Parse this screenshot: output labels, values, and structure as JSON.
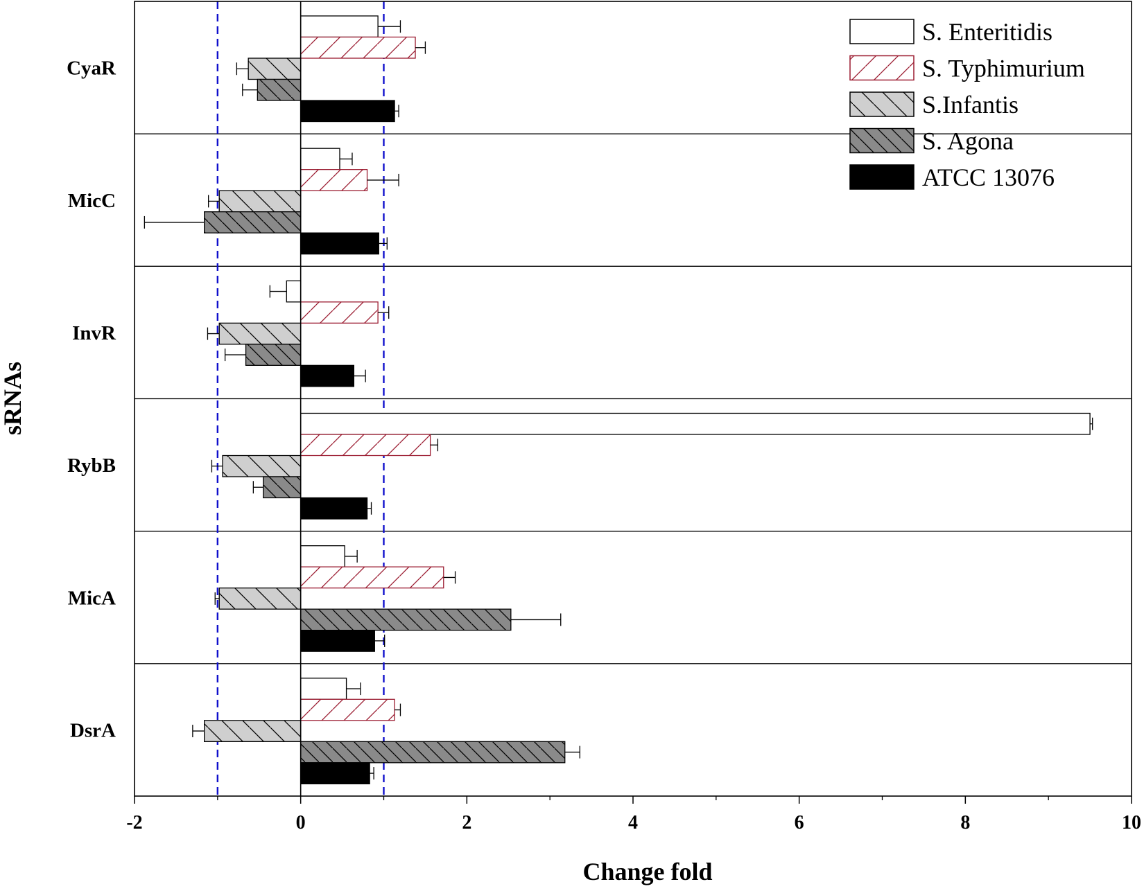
{
  "chart_data": {
    "type": "bar",
    "orientation": "horizontal",
    "title": "",
    "xlabel": "Change fold",
    "ylabel": "sRNAs",
    "xlim": [
      -2,
      10
    ],
    "xticks": [
      "-2",
      "0",
      "2",
      "4",
      "6",
      "8",
      "10"
    ],
    "categories": [
      "CyaR",
      "MicC",
      "InvR",
      "RybB",
      "MicA",
      "DsrA"
    ],
    "reference_lines": [
      -1,
      1
    ],
    "legend_position": "top-right",
    "series": [
      {
        "name": "S. Enteritidis",
        "pattern": "empty",
        "values": [
          0.93,
          0.47,
          -0.17,
          9.5,
          0.53,
          0.55
        ],
        "errors": [
          0.27,
          0.15,
          0.2,
          0.03,
          0.15,
          0.17
        ]
      },
      {
        "name": "S. Typhimurium",
        "pattern": "diagonal-red",
        "values": [
          1.38,
          0.8,
          0.93,
          1.56,
          1.72,
          1.13
        ],
        "errors": [
          0.12,
          0.38,
          0.13,
          0.09,
          0.14,
          0.07
        ]
      },
      {
        "name": "S.Infantis",
        "pattern": "light-gray-back-diagonal",
        "values": [
          -0.63,
          -0.98,
          -0.98,
          -0.94,
          -0.98,
          -1.16
        ],
        "errors": [
          0.14,
          0.13,
          0.14,
          0.13,
          0.05,
          0.14
        ]
      },
      {
        "name": "S. Agona",
        "pattern": "dark-gray-back-diagonal",
        "values": [
          -0.52,
          -1.16,
          -0.66,
          -0.45,
          2.53,
          3.18
        ],
        "errors": [
          0.18,
          0.72,
          0.25,
          0.12,
          0.6,
          0.18
        ]
      },
      {
        "name": "ATCC 13076",
        "pattern": "solid-black",
        "values": [
          1.13,
          0.94,
          0.64,
          0.8,
          0.89,
          0.83
        ],
        "errors": [
          0.05,
          0.1,
          0.14,
          0.05,
          0.12,
          0.05
        ]
      }
    ],
    "colors": {
      "reference_line": "#1010cc",
      "typhimurium_hatch": "#9b1b30",
      "infantis_fill": "#cfcfcf",
      "agona_fill": "#8a8a8a",
      "atcc_fill": "#000000"
    }
  }
}
